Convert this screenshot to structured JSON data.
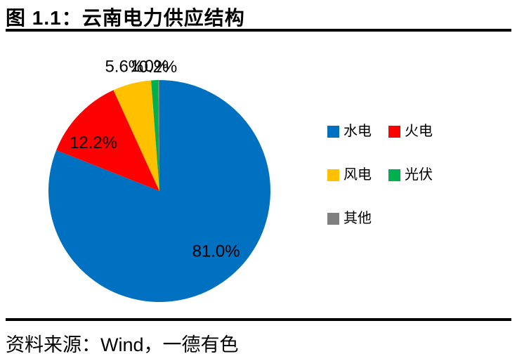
{
  "header": {
    "title": "图 1.1：云南电力供应结构"
  },
  "chart_data": {
    "type": "pie",
    "title": "云南电力供应结构",
    "categories": [
      "水电",
      "火电",
      "风电",
      "光伏",
      "其他"
    ],
    "values": [
      81.0,
      12.2,
      5.6,
      1.0,
      0.2
    ],
    "labels": [
      "81.0%",
      "12.2%",
      "5.6%",
      "1.0%",
      "0.2%"
    ],
    "colors": [
      "#0070C0",
      "#FF0000",
      "#FFC000",
      "#00B050",
      "#808080"
    ],
    "legend_position": "right",
    "start_angle_deg": 0,
    "direction": "clockwise",
    "label_text_color": "#000000"
  },
  "footer": {
    "source": "资料来源：Wind，一德有色"
  }
}
